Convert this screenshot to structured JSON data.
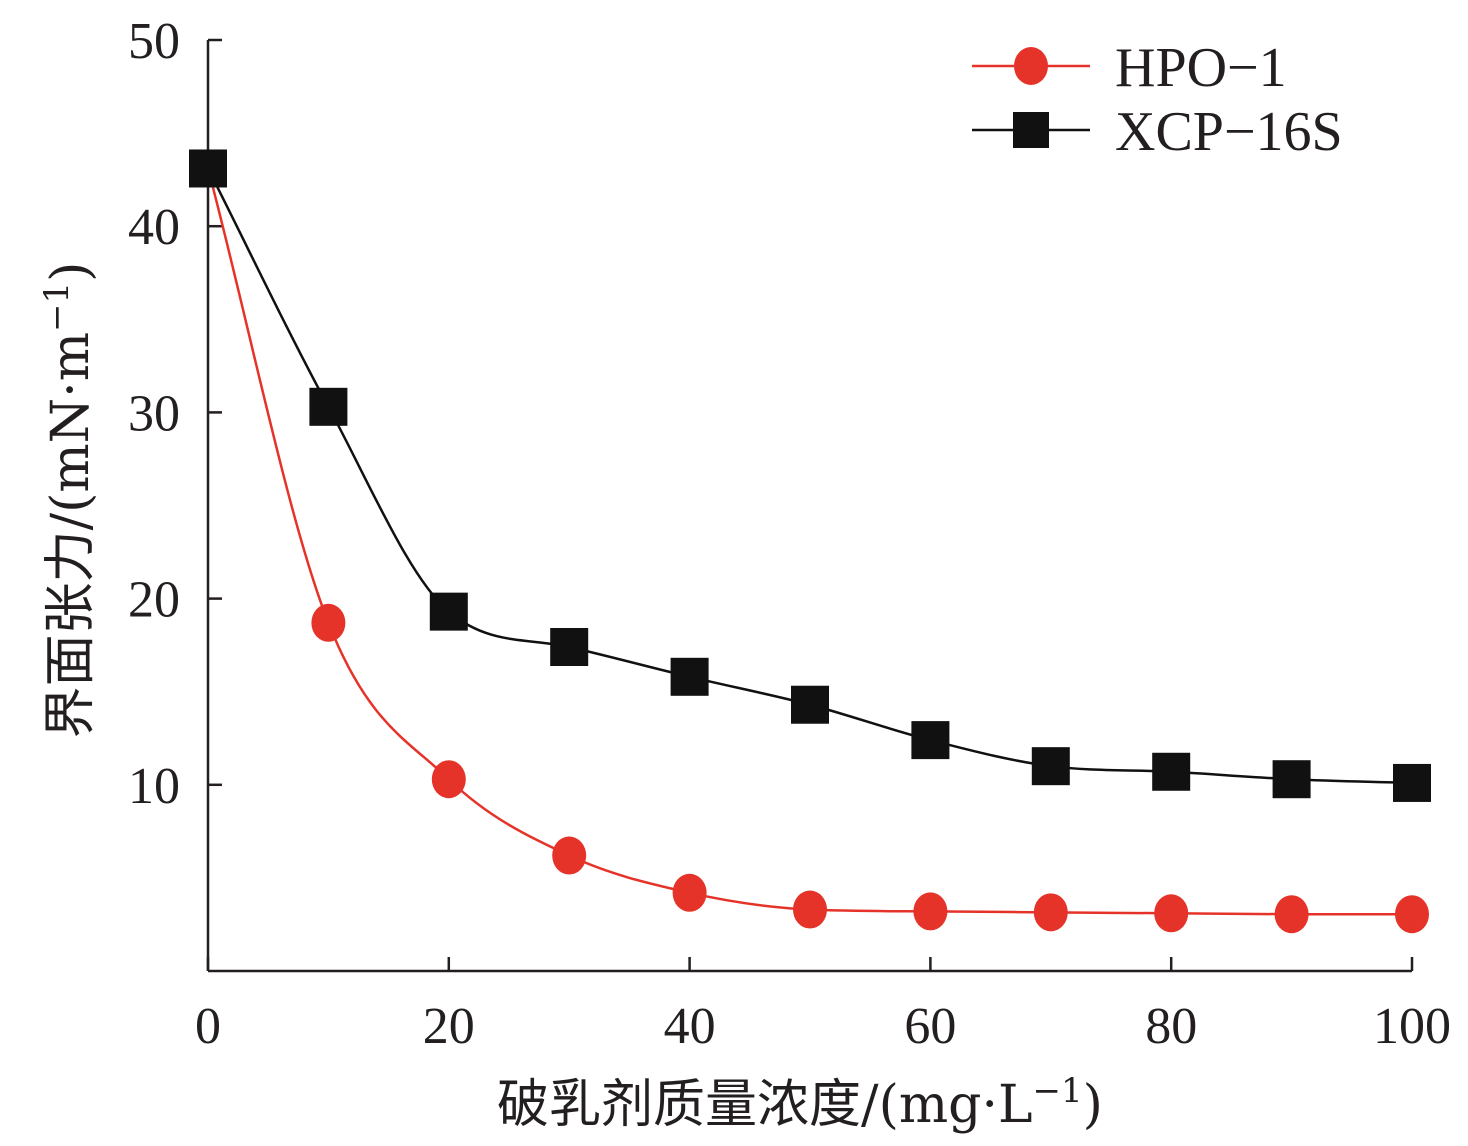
{
  "chart_data": {
    "type": "line",
    "title": "",
    "xlabel": "破乳剂质量浓度/(mg·L",
    "xlabel_sup": "−1",
    "xlabel_close": ")",
    "ylabel": "界面张力/(mN·m",
    "ylabel_sup": "−1",
    "ylabel_close": ")",
    "xlim": [
      0,
      100
    ],
    "ylim": [
      0,
      50
    ],
    "xticks": [
      0,
      20,
      40,
      60,
      80,
      100
    ],
    "xtick_labels": [
      "0",
      "20",
      "40",
      "60",
      "80",
      "100"
    ],
    "yticks": [
      10,
      20,
      30,
      40,
      50
    ],
    "ytick_labels": [
      "10",
      "20",
      "30",
      "40",
      "50"
    ],
    "grid": false,
    "legend_position": "top-right",
    "smooth": true,
    "x": [
      0,
      10,
      20,
      30,
      40,
      50,
      60,
      70,
      80,
      90,
      100
    ],
    "series": [
      {
        "name": "HPO−1",
        "marker": "circle",
        "color": "#e63329",
        "values": [
          43.1,
          18.7,
          10.3,
          6.2,
          4.2,
          3.3,
          3.2,
          3.15,
          3.1,
          3.05,
          3.05
        ]
      },
      {
        "name": "XCP−16S",
        "marker": "square",
        "color": "#111111",
        "values": [
          43.1,
          30.3,
          19.3,
          17.4,
          15.8,
          14.3,
          12.4,
          11.0,
          10.7,
          10.3,
          10.1
        ]
      }
    ]
  }
}
